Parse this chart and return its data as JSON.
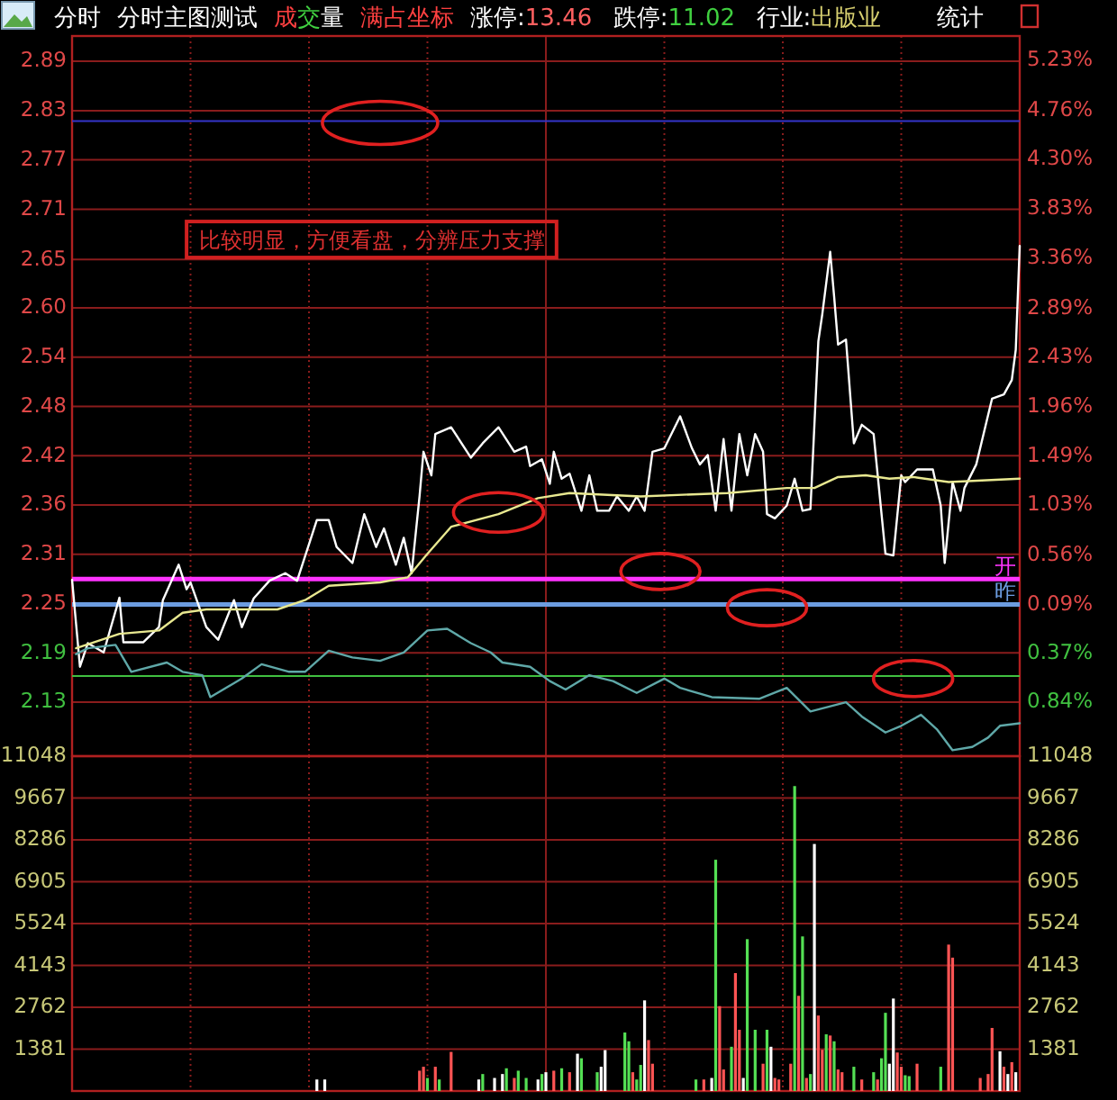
{
  "chart_data": [
    {
      "type": "line",
      "annotations": [
        "分时",
        "分时主图测试",
        "成交量",
        "满占坐标",
        "涨停:13.46",
        "跌停:11.02",
        "行业:出版业",
        "统计",
        "比较明显，方便看盘，分辨压力支撑",
        "0.37%",
        "0.84%"
      ],
      "categories": [
        null,
        null,
        null,
        null,
        null,
        null,
        null,
        null,
        null,
        null,
        null,
        null,
        null,
        null,
        null,
        null,
        null,
        null,
        null,
        null,
        null,
        null,
        null,
        null,
        null,
        null,
        null,
        null,
        null,
        null,
        null,
        null,
        null,
        null,
        null,
        null,
        null,
        null,
        null,
        null,
        null,
        null,
        null,
        null,
        null,
        null,
        null,
        null,
        null,
        null,
        null,
        null,
        null,
        null,
        null,
        null,
        null,
        null,
        null,
        null,
        null,
        null,
        null,
        null,
        null,
        null,
        null,
        null,
        null,
        null,
        null,
        null,
        null,
        null,
        null,
        null,
        null,
        null,
        null,
        null,
        null,
        null,
        null,
        null,
        null,
        null,
        null,
        null,
        null,
        null,
        null,
        null,
        null,
        null,
        null,
        null,
        null,
        null,
        null,
        null,
        null,
        null,
        null,
        null,
        null,
        null,
        null,
        null,
        null,
        null,
        null,
        null,
        null,
        null,
        null,
        null,
        null,
        null,
        null,
        null,
        null,
        null,
        null,
        null,
        null,
        null,
        null,
        null,
        null,
        null,
        null,
        null,
        null,
        null,
        null,
        null,
        null,
        null,
        null,
        null,
        null,
        null,
        null,
        null,
        null,
        null,
        null,
        null,
        null,
        null,
        null,
        null,
        null,
        null,
        null,
        null,
        null,
        null,
        null,
        null,
        null,
        null,
        null,
        null,
        null,
        null,
        null,
        null,
        null,
        null,
        null,
        null,
        null,
        null,
        null,
        null,
        null,
        null,
        null,
        null,
        null,
        null,
        null,
        null,
        null,
        null,
        null,
        null,
        null,
        null,
        null,
        null,
        null,
        null,
        null,
        null,
        null,
        null,
        null,
        null,
        null,
        null,
        null,
        null,
        null,
        null,
        null,
        null,
        null,
        null,
        null,
        null,
        null,
        null,
        null,
        null,
        null,
        null,
        null,
        null,
        null,
        null,
        null,
        null,
        null,
        null,
        null,
        null,
        null,
        null,
        null,
        null,
        null,
        null,
        null,
        null,
        null,
        null,
        null,
        null,
        null
      ],
      "ylim": [
        2.066,
        2.92
      ],
      "yticks": [
        2.89,
        {
          "value": 2.8315,
          "label": "2.83"
        },
        {
          "value": 2.7731,
          "label": "2.77"
        },
        {
          "value": 2.7146,
          "label": "2.71"
        },
        {
          "value": 2.6549,
          "label": "2.65"
        },
        {
          "value": 2.5977,
          "label": "2.60"
        },
        {
          "value": 2.5392,
          "label": "2.54"
        },
        {
          "value": 2.4808,
          "label": "2.48"
        },
        {
          "value": 2.4223,
          "label": "2.42"
        },
        {
          "value": 2.3638,
          "label": "2.36"
        },
        {
          "value": 2.3054,
          "label": "2.31"
        },
        {
          "value": 2.2469,
          "label": "2.25"
        },
        {
          "value": 2.1885,
          "label": "2.19"
        },
        2.13
      ],
      "y2lim": [
        -1.34,
        5.46
      ],
      "y2ticks": [
        {
          "value": 5.23,
          "label": "5.23%"
        },
        {
          "value": 4.76,
          "label": "4.76%"
        },
        {
          "value": 4.3,
          "label": "4.30%"
        },
        {
          "value": 3.83,
          "label": "3.83%"
        },
        {
          "value": 3.36,
          "label": "3.36%"
        },
        {
          "value": 2.89,
          "label": "2.89%"
        },
        {
          "value": 2.43,
          "label": "2.43%"
        },
        {
          "value": 1.96,
          "label": "1.96%"
        },
        {
          "value": 1.49,
          "label": "1.49%"
        },
        {
          "value": 1.03,
          "label": "1.03%"
        },
        {
          "value": 0.56,
          "label": "0.56%"
        },
        {
          "value": 0.09,
          "label": "0.09%"
        }
      ],
      "grid": true,
      "tick_labels": "y",
      "ref_lines": [
        {
          "axis": "y",
          "value": 2.819,
          "label": null,
          "color": "#3434c8"
        },
        {
          "axis": "y",
          "value": 2.276,
          "label": "开",
          "color": "#ff34ff"
        },
        {
          "axis": "y",
          "value": 2.246,
          "label": "昨",
          "color": "#6c9ce0"
        },
        {
          "axis": "y",
          "value": 2.161,
          "label": null,
          "color": "#40c040"
        }
      ],
      "series": [
        {
          "color": "#ffffff",
          "values": [
            2.275,
            null,
            2.172,
            null,
            2.2,
            null,
            null,
            null,
            2.189,
            null,
            null,
            null,
            2.254,
            2.201,
            null,
            null,
            null,
            null,
            2.201,
            null,
            null,
            null,
            2.219,
            2.251,
            null,
            null,
            null,
            2.293,
            null,
            2.264,
            2.272,
            null,
            null,
            null,
            2.219,
            null,
            null,
            2.204,
            null,
            null,
            null,
            2.251,
            null,
            2.219,
            null,
            null,
            2.253,
            null,
            null,
            null,
            2.274,
            null,
            null,
            null,
            2.283,
            null,
            null,
            2.274,
            null,
            null,
            null,
            null,
            2.346,
            null,
            null,
            2.346,
            null,
            2.314,
            null,
            null,
            null,
            2.295,
            null,
            null,
            2.353,
            null,
            null,
            2.314,
            null,
            2.336,
            null,
            null,
            2.293,
            null,
            2.325,
            null,
            2.283,
            null,
            2.374,
            2.427,
            null,
            2.399,
            2.448,
            null,
            null,
            null,
            2.456,
            null,
            null,
            null,
            null,
            2.42,
            null,
            null,
            2.437,
            null,
            null,
            null,
            2.456,
            null,
            null,
            null,
            2.427,
            null,
            null,
            2.433,
            2.41,
            null,
            null,
            2.418,
            null,
            2.389,
            2.427,
            null,
            2.395,
            null,
            2.401,
            null,
            null,
            2.357,
            null,
            2.399,
            null,
            2.357,
            null,
            null,
            2.357,
            null,
            2.374,
            null,
            null,
            2.357,
            null,
            2.374,
            null,
            2.357,
            null,
            2.427,
            null,
            null,
            2.431,
            null,
            null,
            null,
            2.469,
            null,
            null,
            2.431,
            null,
            2.412,
            null,
            2.423,
            null,
            2.357,
            null,
            2.442,
            null,
            2.357,
            null,
            2.448,
            null,
            2.399,
            null,
            2.448,
            null,
            2.427,
            2.353,
            null,
            2.348,
            null,
            null,
            2.363,
            null,
            2.395,
            null,
            2.357,
            null,
            2.359,
            null,
            2.558,
            2.59,
            null,
            2.664,
            2.611,
            2.554,
            null,
            2.56,
            null,
            2.437,
            null,
            2.459,
            null,
            null,
            2.448,
            null,
            null,
            2.306,
            null,
            2.304,
            null,
            2.399,
            2.391,
            null,
            null,
            2.406,
            null,
            null,
            null,
            2.406,
            null,
            2.363,
            2.295,
            null,
            2.391,
            null,
            2.357,
            2.384,
            null,
            null,
            2.412,
            null,
            null,
            null,
            2.49,
            null,
            null,
            2.495,
            null,
            2.512,
            2.548,
            2.671
          ]
        },
        {
          "color": "#e8e890",
          "values": [
            null,
            2.194,
            null,
            null,
            null,
            null,
            null,
            null,
            null,
            null,
            null,
            null,
            2.211,
            null,
            null,
            null,
            null,
            null,
            null,
            null,
            null,
            null,
            2.215,
            null,
            null,
            null,
            null,
            null,
            2.236,
            null,
            null,
            null,
            null,
            null,
            2.24,
            null,
            null,
            null,
            null,
            null,
            null,
            null,
            null,
            null,
            null,
            null,
            null,
            null,
            null,
            null,
            null,
            null,
            2.24,
            null,
            null,
            null,
            null,
            null,
            null,
            2.251,
            null,
            null,
            null,
            null,
            null,
            2.268,
            null,
            null,
            null,
            null,
            null,
            null,
            null,
            null,
            null,
            null,
            null,
            null,
            2.272,
            null,
            null,
            null,
            null,
            null,
            null,
            2.278,
            null,
            null,
            null,
            null,
            2.306,
            null,
            null,
            null,
            null,
            null,
            2.338,
            null,
            null,
            null,
            null,
            null,
            null,
            null,
            null,
            null,
            null,
            null,
            2.353,
            null,
            null,
            null,
            null,
            null,
            null,
            null,
            null,
            null,
            2.372,
            null,
            null,
            null,
            null,
            null,
            null,
            null,
            2.378,
            null,
            null,
            null,
            null,
            null,
            null,
            null,
            null,
            null,
            null,
            null,
            null,
            null,
            null,
            null,
            null,
            null,
            2.374,
            null,
            null,
            null,
            null,
            null,
            null,
            null,
            null,
            null,
            null,
            null,
            null,
            null,
            null,
            null,
            null,
            null,
            null,
            null,
            null,
            null,
            2.378,
            null,
            null,
            null,
            null,
            null,
            null,
            null,
            null,
            null,
            null,
            null,
            null,
            null,
            null,
            2.384,
            null,
            null,
            null,
            null,
            null,
            null,
            2.384,
            null,
            null,
            null,
            null,
            null,
            2.397,
            null,
            null,
            null,
            null,
            null,
            null,
            2.399,
            null,
            null,
            null,
            null,
            null,
            2.395,
            null,
            null,
            null,
            null,
            null,
            2.397,
            null,
            null,
            null,
            null,
            null,
            null,
            null,
            null,
            2.391,
            null,
            null,
            null,
            null,
            null,
            null,
            null,
            null,
            null,
            null,
            null,
            null,
            null,
            null,
            null,
            null,
            null,
            2.395
          ]
        },
        {
          "color": "#5fa8a8",
          "values": [
            null,
            2.187,
            null,
            null,
            2.194,
            null,
            null,
            null,
            null,
            null,
            null,
            2.198,
            null,
            null,
            null,
            2.166,
            null,
            null,
            null,
            null,
            null,
            null,
            null,
            null,
            2.177,
            null,
            null,
            null,
            2.166,
            null,
            null,
            null,
            null,
            2.162,
            null,
            2.136,
            null,
            null,
            null,
            null,
            null,
            null,
            null,
            2.158,
            null,
            null,
            null,
            null,
            2.175,
            null,
            null,
            null,
            null,
            null,
            null,
            2.166,
            null,
            null,
            null,
            2.166,
            null,
            null,
            null,
            null,
            null,
            2.191,
            null,
            null,
            null,
            null,
            null,
            2.183,
            null,
            null,
            null,
            null,
            null,
            null,
            2.179,
            null,
            null,
            null,
            null,
            null,
            2.189,
            null,
            null,
            null,
            null,
            null,
            2.215,
            null,
            null,
            null,
            null,
            2.217,
            null,
            null,
            null,
            null,
            null,
            2.2,
            null,
            null,
            null,
            null,
            2.189,
            null,
            null,
            2.177,
            null,
            null,
            null,
            null,
            null,
            null,
            2.172,
            null,
            null,
            null,
            null,
            2.155,
            null,
            null,
            null,
            2.145,
            null,
            null,
            null,
            null,
            null,
            2.162,
            null,
            null,
            null,
            null,
            null,
            2.155,
            null,
            null,
            null,
            null,
            null,
            2.141,
            null,
            null,
            null,
            null,
            null,
            null,
            2.158,
            null,
            null,
            null,
            2.147,
            null,
            null,
            null,
            null,
            null,
            null,
            null,
            2.136,
            null,
            null,
            null,
            null,
            null,
            null,
            null,
            null,
            null,
            null,
            null,
            2.134,
            null,
            null,
            null,
            null,
            null,
            null,
            2.147,
            null,
            null,
            null,
            null,
            null,
            2.119,
            null,
            null,
            null,
            null,
            null,
            null,
            null,
            null,
            2.13,
            null,
            null,
            null,
            2.113,
            null,
            null,
            null,
            null,
            null,
            2.094,
            null,
            null,
            null,
            2.102,
            null,
            null,
            null,
            null,
            2.115,
            null,
            null,
            null,
            2.098,
            null,
            null,
            null,
            2.073,
            null,
            null,
            null,
            null,
            2.077,
            null,
            null,
            null,
            2.088,
            null,
            null,
            2.102,
            null,
            null,
            null,
            null,
            2.105
          ]
        }
      ]
    },
    {
      "type": "bar",
      "categories": [
        null,
        null,
        null,
        null,
        null,
        null,
        null,
        null,
        null,
        null,
        null,
        null,
        null,
        null,
        null,
        null,
        null,
        null,
        null,
        null,
        null,
        null,
        null,
        null,
        null,
        null,
        null,
        null,
        null,
        null,
        null,
        null,
        null,
        null,
        null,
        null,
        null,
        null,
        null,
        null,
        null,
        null,
        null,
        null,
        null,
        null,
        null,
        null,
        null,
        null,
        null,
        null,
        null,
        null,
        null,
        null,
        null,
        null,
        null,
        null,
        null,
        null,
        null,
        null,
        null,
        null,
        null,
        null,
        null,
        null,
        null,
        null,
        null,
        null,
        null,
        null,
        null,
        null,
        null,
        null,
        null,
        null,
        null,
        null,
        null,
        null,
        null,
        null,
        null,
        null,
        null,
        null,
        null,
        null,
        null,
        null,
        null,
        null,
        null,
        null,
        null,
        null,
        null,
        null,
        null,
        null,
        null,
        null,
        null,
        null,
        null,
        null,
        null,
        null,
        null,
        null,
        null,
        null,
        null,
        null,
        null,
        null,
        null,
        null,
        null,
        null,
        null,
        null,
        null,
        null,
        null,
        null,
        null,
        null,
        null,
        null,
        null,
        null,
        null,
        null,
        null,
        null,
        null,
        null,
        null,
        null,
        null,
        null,
        null,
        null,
        null,
        null,
        null,
        null,
        null,
        null,
        null,
        null,
        null,
        null,
        null,
        null,
        null,
        null,
        null,
        null,
        null,
        null,
        null,
        null,
        null,
        null,
        null,
        null,
        null,
        null,
        null,
        null,
        null,
        null,
        null,
        null,
        null,
        null,
        null,
        null,
        null,
        null,
        null,
        null,
        null,
        null,
        null,
        null,
        null,
        null,
        null,
        null,
        null,
        null,
        null,
        null,
        null,
        null,
        null,
        null,
        null,
        null,
        null,
        null,
        null,
        null,
        null,
        null,
        null,
        null,
        null,
        null,
        null,
        null,
        null,
        null,
        null,
        null,
        null,
        null,
        null,
        null,
        null,
        null,
        null,
        null,
        null,
        null,
        null,
        null,
        null,
        null,
        null,
        null,
        null
      ],
      "ylim": [
        0,
        11048
      ],
      "yticks": [
        1381,
        2762,
        4143,
        5524,
        6905,
        8286,
        9667,
        11048
      ],
      "y2lim": [
        0,
        11048
      ],
      "y2ticks": [
        1381,
        2762,
        4143,
        5524,
        6905,
        8286,
        9667,
        11048
      ],
      "grid": true,
      "tick_labels": "y",
      "values": [
        null,
        null,
        null,
        null,
        null,
        null,
        null,
        null,
        null,
        null,
        null,
        null,
        null,
        null,
        null,
        null,
        null,
        null,
        null,
        null,
        null,
        null,
        null,
        null,
        null,
        null,
        null,
        null,
        null,
        null,
        null,
        null,
        null,
        null,
        null,
        null,
        null,
        null,
        null,
        null,
        null,
        null,
        null,
        null,
        null,
        null,
        null,
        null,
        null,
        null,
        null,
        null,
        null,
        null,
        null,
        null,
        null,
        null,
        null,
        null,
        null,
        null,
        380,
        null,
        380,
        null,
        null,
        null,
        null,
        null,
        null,
        null,
        null,
        null,
        null,
        null,
        null,
        null,
        null,
        null,
        null,
        null,
        null,
        null,
        null,
        null,
        null,
        null,
        670,
        800,
        430,
        null,
        800,
        380,
        null,
        null,
        1290,
        null,
        null,
        null,
        null,
        null,
        null,
        380,
        560,
        null,
        null,
        430,
        null,
        560,
        750,
        null,
        430,
        670,
        null,
        430,
        null,
        null,
        380,
        560,
        620,
        null,
        670,
        null,
        750,
        null,
        620,
        null,
        1230,
        1080,
        null,
        null,
        null,
        620,
        800,
        1350,
        null,
        null,
        null,
        null,
        1930,
        1640,
        620,
        380,
        860,
        2990,
        1680,
        900,
        null,
        null,
        null,
        null,
        null,
        null,
        null,
        null,
        null,
        null,
        380,
        null,
        380,
        null,
        430,
        7630,
        2800,
        710,
        null,
        1460,
        3890,
        2020,
        430,
        5010,
        null,
        2020,
        null,
        900,
        2020,
        1460,
        430,
        380,
        null,
        null,
        900,
        10060,
        3140,
        5100,
        430,
        560,
        8150,
        2490,
        1360,
        1870,
        1830,
        1640,
        710,
        620,
        null,
        null,
        800,
        null,
        380,
        null,
        null,
        620,
        380,
        1080,
        2580,
        900,
        3050,
        1270,
        800,
        520,
        490,
        null,
        900,
        null,
        null,
        null,
        null,
        null,
        800,
        null,
        4830,
        4400,
        null,
        null,
        null,
        null,
        null,
        null,
        430,
        null,
        560,
        2080,
        null,
        1310,
        800,
        560,
        950,
        620,
        null
      ],
      "colors": [
        null,
        null,
        null,
        null,
        null,
        null,
        null,
        null,
        null,
        null,
        null,
        null,
        null,
        null,
        null,
        null,
        null,
        null,
        null,
        null,
        null,
        null,
        null,
        null,
        null,
        null,
        null,
        null,
        null,
        null,
        null,
        null,
        null,
        null,
        null,
        null,
        null,
        null,
        null,
        null,
        null,
        null,
        null,
        null,
        null,
        null,
        null,
        null,
        null,
        null,
        null,
        null,
        null,
        null,
        null,
        null,
        null,
        null,
        null,
        null,
        null,
        null,
        "#ffffff",
        null,
        "#ffffff",
        null,
        null,
        null,
        null,
        null,
        null,
        null,
        null,
        null,
        null,
        null,
        null,
        null,
        null,
        null,
        null,
        null,
        null,
        null,
        null,
        null,
        null,
        null,
        "#ff5454",
        "#ff5454",
        "#54e054",
        null,
        "#ff5454",
        "#54e054",
        null,
        null,
        "#ff5454",
        null,
        null,
        null,
        null,
        null,
        null,
        "#ffffff",
        "#54e054",
        null,
        null,
        "#ffffff",
        null,
        "#ffffff",
        "#54e054",
        null,
        "#ff5454",
        "#54e054",
        null,
        "#54e054",
        null,
        null,
        "#ffffff",
        "#54e054",
        "#ffffff",
        null,
        "#ff5454",
        null,
        "#54e054",
        null,
        "#ff5454",
        null,
        "#ffffff",
        "#54e054",
        null,
        null,
        null,
        "#54e054",
        "#ffffff",
        "#ffffff",
        null,
        null,
        null,
        null,
        "#54e054",
        "#54e054",
        "#ff5454",
        "#54e054",
        "#54e054",
        "#ffffff",
        "#ff5454",
        "#ff5454",
        null,
        null,
        null,
        null,
        null,
        null,
        null,
        null,
        null,
        null,
        "#54e054",
        null,
        "#ff5454",
        null,
        "#ffffff",
        "#54e054",
        "#ff5454",
        "#ff5454",
        null,
        "#54e054",
        "#ff5454",
        "#ff5454",
        "#ffffff",
        "#54e054",
        null,
        "#54e054",
        null,
        "#ff5454",
        "#54e054",
        "#ffffff",
        "#ff5454",
        "#ff5454",
        null,
        null,
        "#ff5454",
        "#54e054",
        "#ff5454",
        "#54e054",
        "#ff5454",
        "#54e054",
        "#ffffff",
        "#ff5454",
        "#ff5454",
        "#54e054",
        "#ff5454",
        "#54e054",
        "#ff5454",
        "#ff5454",
        null,
        null,
        "#54e054",
        null,
        "#ff5454",
        null,
        null,
        "#54e054",
        "#ff5454",
        "#54e054",
        "#54e054",
        "#ffffff",
        "#ffffff",
        "#ff5454",
        "#ff5454",
        "#54e054",
        "#54e054",
        null,
        "#ff5454",
        null,
        null,
        null,
        null,
        null,
        "#54e054",
        null,
        "#ff5454",
        "#ff5454",
        null,
        null,
        null,
        null,
        null,
        null,
        "#ff5454",
        null,
        "#ff5454",
        "#ff5454",
        null,
        "#ffffff",
        "#ff5454",
        "#ffffff",
        "#ff5454",
        "#ffffff",
        null
      ]
    }
  ]
}
